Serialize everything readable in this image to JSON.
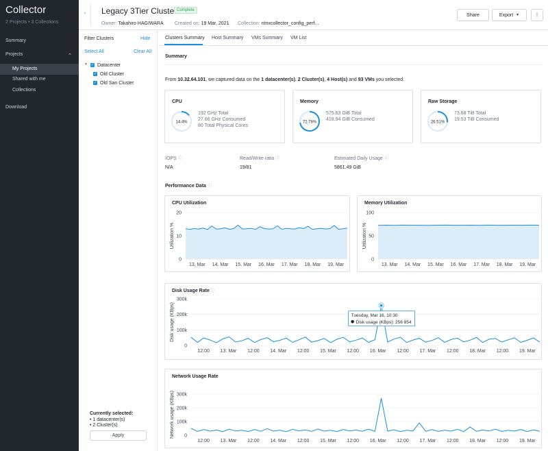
{
  "sidebar": {
    "brand": "Collector",
    "subtitle": "2 Projects  •  3 Collections",
    "summary": "Summary",
    "projects": "Projects",
    "my_projects": "My Projects",
    "shared": "Shared with me",
    "collections": "Collections",
    "download": "Download"
  },
  "filter": {
    "title": "Filter Clusters",
    "hide": "Hide",
    "select_all": "Select All",
    "clear_all": "Clear All",
    "datacenter": "Datacenter",
    "clusters": [
      "Old Cluster",
      "Old San Cluster"
    ],
    "selected_title": "Currently selected:",
    "selected": [
      "1 datacenter(s)",
      "2 Cluster(s)"
    ],
    "apply": "Apply"
  },
  "header": {
    "back": "‹",
    "title": "Legacy 3Tier Cluster",
    "status": "Complete",
    "owner_label": "Owner:",
    "owner": "Takahiro HAGIWARA",
    "created_label": "Created on:",
    "created": "19 Mar, 2021",
    "collection_label": "Collection:",
    "collection": "ntnxcollector_config_perf...",
    "share": "Share",
    "export": "Export",
    "more": "⋮"
  },
  "tabs": [
    "Clusters Summary",
    "Host Summary",
    "VMs Summary",
    "VM List"
  ],
  "summary": {
    "heading": "Summary",
    "intro_pre": "From ",
    "ip": "10.32.64.101",
    "intro_mid": ", we captured data on the ",
    "dc": "1 datacenter(s)",
    "c1": ", ",
    "clusters": "2 Cluster(s)",
    "c2": ", ",
    "hosts": "4 Host(s)",
    "c3": " and ",
    "vms": "93 VMs",
    "intro_post": " you selected."
  },
  "stats": {
    "cpu": {
      "title": "CPU",
      "pct_label": "14.4%",
      "pct": 14.4,
      "lines": [
        "192 GHz Total",
        "27.66 GHz Consumed",
        "80 Total Physical Cores"
      ]
    },
    "memory": {
      "title": "Memory",
      "pct_label": "72.78%",
      "pct": 72.78,
      "lines": [
        "575.63 GiB Total",
        "418.94 GiB Consumed"
      ]
    },
    "storage": {
      "title": "Raw Storage",
      "pct_label": "26.51%",
      "pct": 26.51,
      "lines": [
        "73.68 TiB Total",
        "19.53 TiB Consumed"
      ]
    }
  },
  "metrics": {
    "iops_label": "IOPS",
    "iops": "N/A",
    "rw_label": "Read/Write ratio",
    "rw": "19/81",
    "daily_label": "Estimated Daily Usage",
    "daily": "5861.49 GiB"
  },
  "perf_heading": "Performance Data",
  "info_icon": "ⓘ",
  "accent": "#1b8ee0",
  "chart_data": [
    {
      "type": "area",
      "title": "CPU Utilization",
      "ylabel": "Utilization %",
      "ylim": [
        0,
        20
      ],
      "yticks": [
        "20",
        "10",
        "0"
      ],
      "xticks": [
        "13. Mar",
        "14. Mar",
        "15. Mar",
        "16. Mar",
        "17. Mar",
        "18. Mar",
        "19. Mar"
      ],
      "series": [
        {
          "values": [
            13,
            12.8,
            13.1,
            12.9,
            13.3,
            12.7,
            14.2,
            12.9,
            13,
            13.4,
            12.8,
            13.1,
            14.6,
            12.9,
            13,
            13.2,
            12.8,
            13.9,
            13.1,
            12.9,
            13,
            14.3,
            12.8,
            13.2,
            13,
            12.9,
            13.5,
            13.1,
            14.1,
            12.8,
            13,
            13.2,
            12.9,
            13.1,
            14.4,
            12.8,
            13,
            13.3
          ]
        }
      ]
    },
    {
      "type": "area",
      "title": "Memory Utilization",
      "ylabel": "Utilization %",
      "ylim": [
        0,
        100
      ],
      "yticks": [
        "100",
        "50",
        "0"
      ],
      "xticks": [
        "13. Mar",
        "14. Mar",
        "15. Mar",
        "16. Mar",
        "17. Mar",
        "18. Mar",
        "19. Mar"
      ],
      "series": [
        {
          "values": [
            72.5,
            72.8,
            72.4,
            72.9,
            72.6,
            72.7,
            72.5,
            72.8,
            72.9,
            72.6,
            72.7,
            72.8,
            72.5,
            72.9,
            72.6,
            72.7,
            72.8,
            72.6,
            72.9,
            72.7
          ]
        }
      ]
    },
    {
      "type": "line",
      "title": "Disk Usage Rate",
      "ylabel": "Disk usage (KBps)",
      "ylim": [
        0,
        300000
      ],
      "yticks": [
        "300k",
        "200k",
        "100k",
        "0"
      ],
      "xticks": [
        "12:00",
        "13. Mar",
        "12:00",
        "14. Mar",
        "12:00",
        "15. Mar",
        "12:00",
        "16. Mar",
        "12:00",
        "17. Mar",
        "12:00",
        "18. Mar",
        "12:00",
        "19. Mar"
      ],
      "series": [
        {
          "values": [
            52000,
            20000,
            48000,
            35000,
            18000,
            42000,
            55000,
            22000,
            30000,
            46000,
            19000,
            38000,
            50000,
            24000,
            33000,
            47000,
            20000,
            36000,
            54000,
            21000,
            31000,
            45000,
            18000,
            40000,
            52000,
            23000,
            34000,
            48000,
            20000,
            37000,
            256854,
            22000,
            41000,
            53000,
            19000,
            35000,
            46000,
            21000,
            32000,
            50000,
            20000,
            38000,
            47000,
            23000,
            34000,
            52000,
            19000,
            40000,
            45000,
            22000,
            36000,
            49000,
            20000,
            33000,
            48000,
            21000
          ]
        }
      ],
      "tooltip": {
        "date": "Tuesday, Mar 16, 10:30",
        "series": "Disk usage (KBps):",
        "value": "256 854"
      }
    },
    {
      "type": "line",
      "title": "Network Usage Rate",
      "ylabel": "Network usage (KBps)",
      "ylim": [
        0,
        300000
      ],
      "yticks": [
        "300k",
        "200k",
        "100k",
        "0"
      ],
      "xticks": [
        "12:00",
        "13. Mar",
        "12:00",
        "14. Mar",
        "12:00",
        "15. Mar",
        "12:00",
        "16. Mar",
        "12:00",
        "17. Mar",
        "12:00",
        "18. Mar",
        "12:00",
        "19. Mar"
      ],
      "series": [
        {
          "values": [
            50000,
            28000,
            42000,
            30000,
            38000,
            26000,
            44000,
            31000,
            36000,
            27000,
            41000,
            29000,
            48000,
            30000,
            37000,
            26000,
            43000,
            32000,
            39000,
            28000,
            45000,
            30000,
            36000,
            27000,
            42000,
            31000,
            38000,
            29000,
            44000,
            28000,
            270000,
            30000,
            40000,
            27000,
            36000,
            31000,
            90000,
            29000,
            41000,
            28000,
            37000,
            30000,
            43000,
            27000,
            60000,
            29000,
            38000,
            31000,
            44000,
            28000,
            36000,
            30000,
            42000,
            27000,
            39000,
            29000
          ]
        }
      ]
    }
  ]
}
